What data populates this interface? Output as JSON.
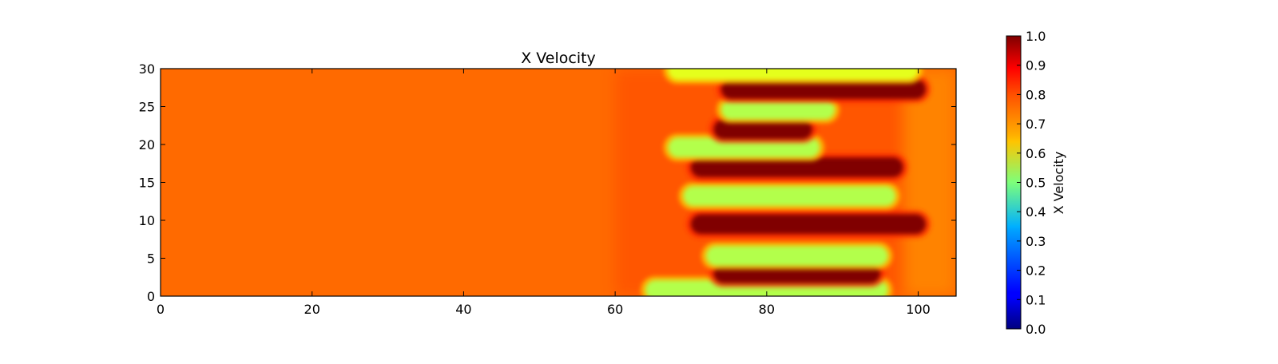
{
  "chart_data": {
    "type": "heatmap",
    "title": "X Velocity",
    "xlabel": "",
    "ylabel": "",
    "xlim": [
      0,
      105
    ],
    "ylim": [
      0,
      30
    ],
    "x_ticks": [
      "0",
      "20",
      "40",
      "60",
      "80",
      "100"
    ],
    "y_ticks": [
      "0",
      "5",
      "10",
      "15",
      "20",
      "25",
      "30"
    ],
    "colormap": "jet",
    "colorbar": {
      "label": "X Velocity",
      "range": [
        0.0,
        1.0
      ],
      "ticks": [
        "0.0",
        "0.1",
        "0.2",
        "0.3",
        "0.4",
        "0.5",
        "0.6",
        "0.7",
        "0.8",
        "0.9",
        "1.0"
      ]
    },
    "background_value": 0.8,
    "field_features": [
      {
        "kind": "low-velocity finger",
        "value": 0.55,
        "y": 0.8,
        "x_start": 64,
        "x_end": 96
      },
      {
        "kind": "high-velocity finger",
        "value": 1.0,
        "y": 3.0,
        "x_start": 73,
        "x_end": 95
      },
      {
        "kind": "low-velocity finger",
        "value": 0.55,
        "y": 5.3,
        "x_start": 72,
        "x_end": 96
      },
      {
        "kind": "high-velocity finger",
        "value": 1.0,
        "y": 9.5,
        "x_start": 70,
        "x_end": 101
      },
      {
        "kind": "low-velocity finger",
        "value": 0.55,
        "y": 13.2,
        "x_start": 69,
        "x_end": 97
      },
      {
        "kind": "high-velocity finger",
        "value": 1.0,
        "y": 17.0,
        "x_start": 70,
        "x_end": 98
      },
      {
        "kind": "low-velocity finger",
        "value": 0.55,
        "y": 19.6,
        "x_start": 67,
        "x_end": 87
      },
      {
        "kind": "high-velocity finger",
        "value": 1.0,
        "y": 22.0,
        "x_start": 73,
        "x_end": 86
      },
      {
        "kind": "low-velocity finger",
        "value": 0.55,
        "y": 24.6,
        "x_start": 74,
        "x_end": 89
      },
      {
        "kind": "high-velocity finger",
        "value": 1.0,
        "y": 27.3,
        "x_start": 74,
        "x_end": 101
      },
      {
        "kind": "low-velocity finger",
        "value": 0.6,
        "y": 29.8,
        "x_start": 67,
        "x_end": 100
      }
    ]
  }
}
